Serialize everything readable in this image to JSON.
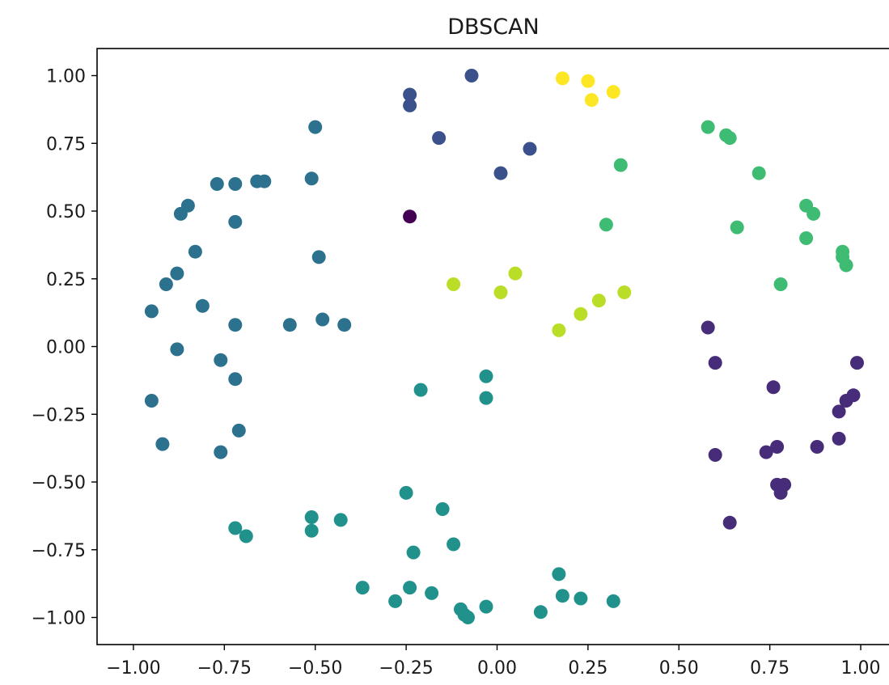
{
  "chart_data": {
    "type": "scatter",
    "title": "DBSCAN",
    "xlabel": "",
    "ylabel": "",
    "xlim": [
      -1.1,
      1.08
    ],
    "ylim": [
      -1.1,
      1.1
    ],
    "grid": false,
    "legend": "none",
    "x_ticks": [
      -1.0,
      -0.75,
      -0.5,
      -0.25,
      0.0,
      0.25,
      0.5,
      0.75,
      1.0
    ],
    "x_tick_labels": [
      "−1.00",
      "−0.75",
      "−0.50",
      "−0.25",
      "0.00",
      "0.25",
      "0.50",
      "0.75",
      "1.00"
    ],
    "y_ticks": [
      1.0,
      0.75,
      0.5,
      0.25,
      0.0,
      -0.25,
      -0.5,
      -0.75,
      -1.0
    ],
    "y_tick_labels": [
      "1.00",
      "0.75",
      "0.50",
      "0.25",
      "0.00",
      "−0.25",
      "−0.50",
      "−0.75",
      "−1.00"
    ],
    "clusters": [
      {
        "label": -1,
        "color": "#440154",
        "points": [
          [
            -0.24,
            0.48
          ]
        ]
      },
      {
        "label": 0,
        "color": "#472c7a",
        "points": [
          [
            0.58,
            0.07
          ],
          [
            0.6,
            -0.06
          ],
          [
            0.76,
            -0.15
          ],
          [
            0.99,
            -0.06
          ],
          [
            0.98,
            -0.18
          ],
          [
            0.96,
            -0.2
          ],
          [
            0.94,
            -0.24
          ],
          [
            0.6,
            -0.4
          ],
          [
            0.74,
            -0.39
          ],
          [
            0.77,
            -0.37
          ],
          [
            0.88,
            -0.37
          ],
          [
            0.94,
            -0.34
          ],
          [
            0.77,
            -0.51
          ],
          [
            0.79,
            -0.51
          ],
          [
            0.78,
            -0.54
          ],
          [
            0.64,
            -0.65
          ]
        ]
      },
      {
        "label": 1,
        "color": "#3b518b",
        "points": [
          [
            -0.07,
            1.0
          ],
          [
            -0.24,
            0.93
          ],
          [
            -0.24,
            0.89
          ],
          [
            -0.16,
            0.77
          ],
          [
            0.09,
            0.73
          ],
          [
            0.01,
            0.64
          ]
        ]
      },
      {
        "label": 2,
        "color": "#2c718e",
        "points": [
          [
            -0.5,
            0.81
          ],
          [
            -0.51,
            0.62
          ],
          [
            -0.77,
            0.6
          ],
          [
            -0.72,
            0.6
          ],
          [
            -0.66,
            0.61
          ],
          [
            -0.64,
            0.61
          ],
          [
            -0.85,
            0.52
          ],
          [
            -0.87,
            0.49
          ],
          [
            -0.72,
            0.46
          ],
          [
            -0.83,
            0.35
          ],
          [
            -0.49,
            0.33
          ],
          [
            -0.88,
            0.27
          ],
          [
            -0.91,
            0.23
          ],
          [
            -0.81,
            0.15
          ],
          [
            -0.95,
            0.13
          ],
          [
            -0.72,
            0.08
          ],
          [
            -0.57,
            0.08
          ],
          [
            -0.48,
            0.1
          ],
          [
            -0.42,
            0.08
          ],
          [
            -0.88,
            -0.01
          ],
          [
            -0.76,
            -0.05
          ],
          [
            -0.72,
            -0.12
          ],
          [
            -0.95,
            -0.2
          ],
          [
            -0.92,
            -0.36
          ],
          [
            -0.71,
            -0.31
          ],
          [
            -0.76,
            -0.39
          ]
        ]
      },
      {
        "label": 3,
        "color": "#21918c",
        "points": [
          [
            -0.21,
            -0.16
          ],
          [
            -0.03,
            -0.11
          ],
          [
            -0.03,
            -0.19
          ],
          [
            -0.25,
            -0.54
          ],
          [
            -0.15,
            -0.6
          ],
          [
            -0.72,
            -0.67
          ],
          [
            -0.69,
            -0.7
          ],
          [
            -0.51,
            -0.63
          ],
          [
            -0.51,
            -0.68
          ],
          [
            -0.43,
            -0.64
          ],
          [
            -0.12,
            -0.73
          ],
          [
            -0.23,
            -0.76
          ],
          [
            -0.37,
            -0.89
          ],
          [
            -0.28,
            -0.94
          ],
          [
            -0.24,
            -0.89
          ],
          [
            -0.18,
            -0.91
          ],
          [
            -0.1,
            -0.97
          ],
          [
            -0.09,
            -0.99
          ],
          [
            -0.08,
            -1.0
          ],
          [
            -0.03,
            -0.96
          ],
          [
            0.12,
            -0.98
          ],
          [
            0.17,
            -0.84
          ],
          [
            0.18,
            -0.92
          ],
          [
            0.23,
            -0.93
          ],
          [
            0.32,
            -0.94
          ]
        ]
      },
      {
        "label": 4,
        "color": "#3fbc73",
        "points": [
          [
            0.58,
            0.81
          ],
          [
            0.63,
            0.78
          ],
          [
            0.64,
            0.77
          ],
          [
            0.34,
            0.67
          ],
          [
            0.72,
            0.64
          ],
          [
            0.85,
            0.52
          ],
          [
            0.87,
            0.49
          ],
          [
            0.3,
            0.45
          ],
          [
            0.66,
            0.44
          ],
          [
            0.85,
            0.4
          ],
          [
            0.95,
            0.35
          ],
          [
            0.95,
            0.33
          ],
          [
            0.96,
            0.3
          ],
          [
            0.78,
            0.23
          ]
        ]
      },
      {
        "label": 5,
        "color": "#bade28",
        "points": [
          [
            -0.12,
            0.23
          ],
          [
            0.05,
            0.27
          ],
          [
            0.01,
            0.2
          ],
          [
            0.35,
            0.2
          ],
          [
            0.28,
            0.17
          ],
          [
            0.23,
            0.12
          ],
          [
            0.17,
            0.06
          ]
        ]
      },
      {
        "label": 6,
        "color": "#fde725",
        "points": [
          [
            0.18,
            0.99
          ],
          [
            0.25,
            0.98
          ],
          [
            0.26,
            0.91
          ],
          [
            0.32,
            0.94
          ]
        ]
      }
    ]
  }
}
